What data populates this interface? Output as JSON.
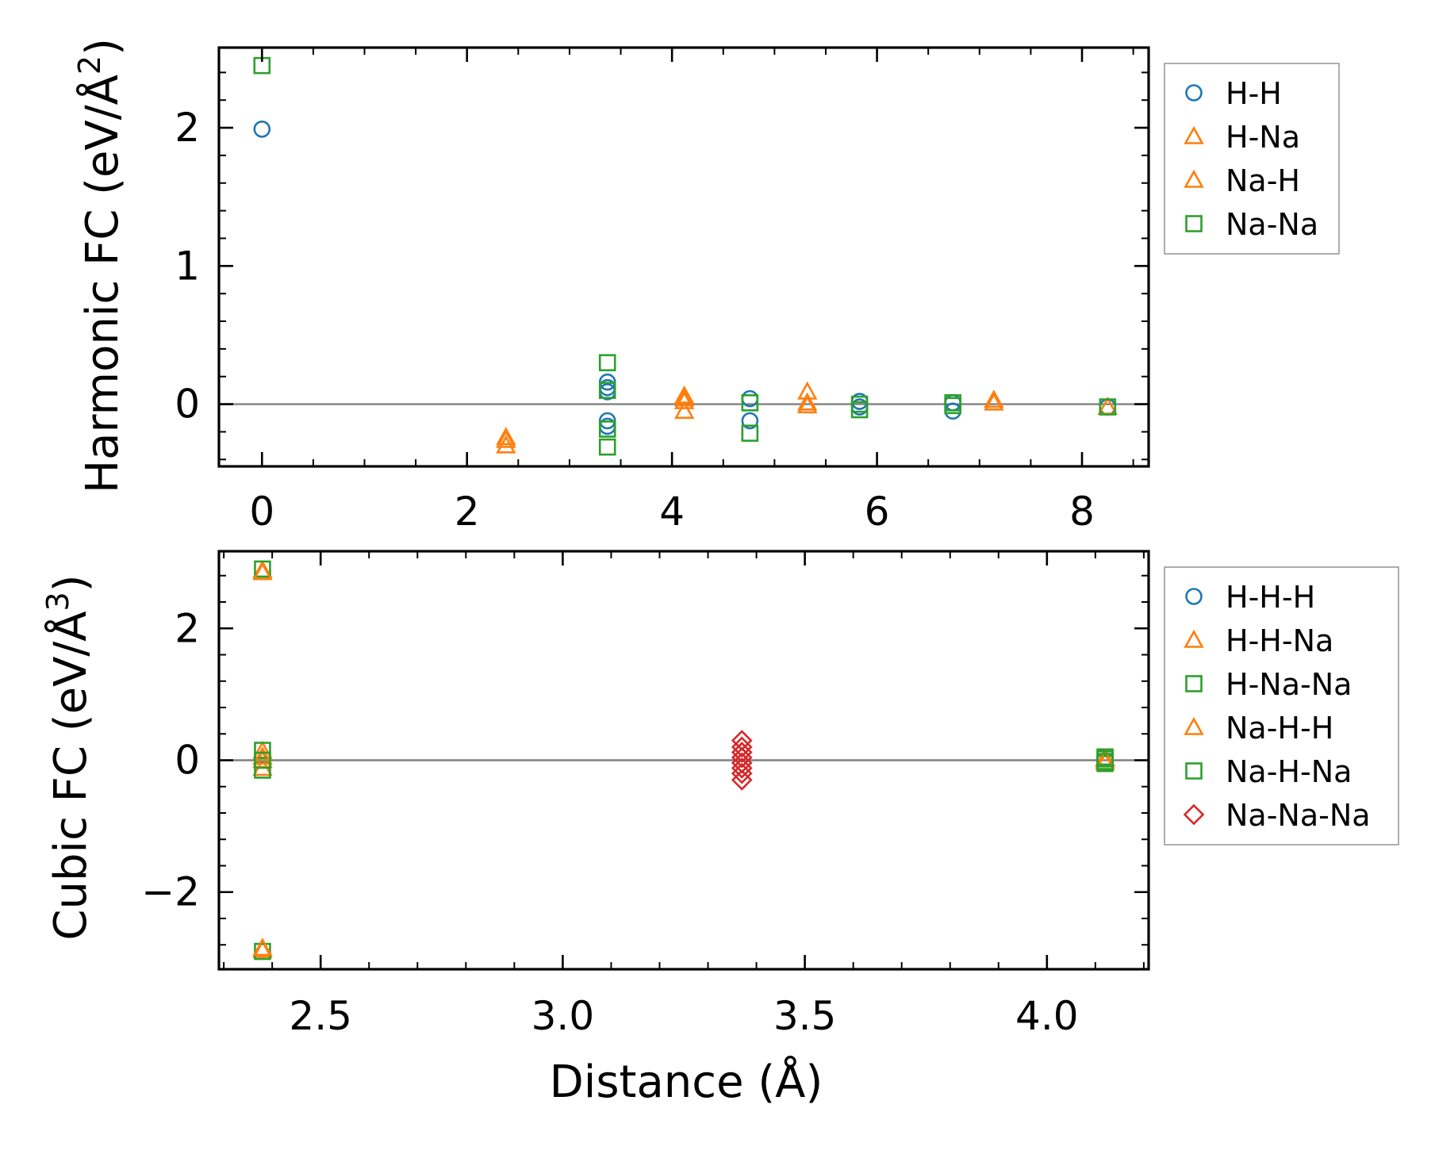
{
  "figure_title": "",
  "shared_xlabel": "Distance (Å)",
  "chart_data": [
    {
      "type": "scatter",
      "title": "",
      "xlabel": "",
      "ylabel": "Harmonic FC (eV/Å²)",
      "ylabel_base": "Harmonic FC (eV/Å",
      "ylabel_sup": "2",
      "ylabel_tail": ")",
      "xlim": [
        -0.42,
        8.65
      ],
      "ylim": [
        -0.45,
        2.58
      ],
      "xticks": [
        0,
        2,
        4,
        6,
        8
      ],
      "xtick_labels": [
        "0",
        "2",
        "4",
        "6",
        "8"
      ],
      "yticks": [
        0,
        1,
        2
      ],
      "ytick_labels": [
        "0",
        "1",
        "2"
      ],
      "hline_at": 0,
      "grid": false,
      "legend_position": "outside-right-top",
      "series": [
        {
          "name": "H-H",
          "marker": "circle",
          "color": "#1f77b4",
          "points": [
            [
              0,
              1.99
            ],
            [
              3.37,
              0.16
            ],
            [
              3.37,
              0.12
            ],
            [
              3.37,
              0.09
            ],
            [
              3.37,
              -0.12
            ],
            [
              3.37,
              -0.16
            ],
            [
              4.76,
              0.04
            ],
            [
              4.76,
              -0.12
            ],
            [
              5.83,
              0.02
            ],
            [
              5.83,
              -0.02
            ],
            [
              6.74,
              0.01
            ],
            [
              6.74,
              -0.05
            ],
            [
              8.25,
              -0.02
            ]
          ]
        },
        {
          "name": "H-Na",
          "marker": "triangle",
          "color": "#ff7f0e",
          "points": [
            [
              2.38,
              -0.24
            ],
            [
              2.38,
              -0.3
            ],
            [
              4.12,
              0.06
            ],
            [
              4.12,
              0.02
            ],
            [
              4.12,
              -0.05
            ],
            [
              5.32,
              0.09
            ],
            [
              5.32,
              0.01
            ],
            [
              7.14,
              0.03
            ],
            [
              8.25,
              -0.02
            ]
          ]
        },
        {
          "name": "Na-H",
          "marker": "triangle",
          "color": "#ff7f0e",
          "points": [
            [
              2.38,
              -0.26
            ],
            [
              4.12,
              0.04
            ],
            [
              5.32,
              -0.01
            ],
            [
              7.14,
              0.01
            ]
          ]
        },
        {
          "name": "Na-Na",
          "marker": "square",
          "color": "#2ca02c",
          "points": [
            [
              0,
              2.45
            ],
            [
              3.37,
              0.3
            ],
            [
              3.37,
              0.1
            ],
            [
              3.37,
              -0.18
            ],
            [
              3.37,
              -0.31
            ],
            [
              4.76,
              0.01
            ],
            [
              4.76,
              -0.21
            ],
            [
              5.83,
              0.0
            ],
            [
              5.83,
              -0.04
            ],
            [
              6.74,
              0.01
            ],
            [
              6.74,
              -0.01
            ],
            [
              8.25,
              -0.02
            ]
          ]
        }
      ],
      "legend": [
        {
          "label": "H-H",
          "marker": "circle",
          "color": "#1f77b4"
        },
        {
          "label": "H-Na",
          "marker": "triangle",
          "color": "#ff7f0e"
        },
        {
          "label": "Na-H",
          "marker": "triangle",
          "color": "#ff7f0e"
        },
        {
          "label": "Na-Na",
          "marker": "square",
          "color": "#2ca02c"
        }
      ]
    },
    {
      "type": "scatter",
      "title": "",
      "xlabel": "Distance (Å)",
      "ylabel": "Cubic FC (eV/Å³)",
      "ylabel_base": "Cubic FC (eV/Å",
      "ylabel_sup": "3",
      "ylabel_tail": ")",
      "xlim": [
        2.29,
        4.21
      ],
      "ylim": [
        -3.17,
        3.17
      ],
      "xticks": [
        2.5,
        3.0,
        3.5,
        4.0
      ],
      "xtick_labels": [
        "2.5",
        "3.0",
        "3.5",
        "4.0"
      ],
      "yticks": [
        -2,
        0,
        2
      ],
      "ytick_labels": [
        "−2",
        "0",
        "2"
      ],
      "hline_at": 0,
      "grid": false,
      "legend_position": "outside-right-top",
      "series": [
        {
          "name": "H-H-H",
          "marker": "circle",
          "color": "#1f77b4",
          "points": []
        },
        {
          "name": "H-H-Na",
          "marker": "triangle",
          "color": "#ff7f0e",
          "points": [
            [
              2.38,
              2.88
            ],
            [
              2.38,
              0.14
            ],
            [
              2.38,
              0.0
            ],
            [
              2.38,
              -0.12
            ],
            [
              2.38,
              -2.88
            ],
            [
              4.12,
              0.03
            ],
            [
              4.12,
              -0.03
            ]
          ]
        },
        {
          "name": "H-Na-Na",
          "marker": "square",
          "color": "#2ca02c",
          "points": [
            [
              2.38,
              2.9
            ],
            [
              2.38,
              0.15
            ],
            [
              2.38,
              -0.15
            ],
            [
              2.38,
              -2.9
            ],
            [
              4.12,
              0.05
            ],
            [
              4.12,
              -0.05
            ]
          ]
        },
        {
          "name": "Na-H-H",
          "marker": "triangle",
          "color": "#ff7f0e",
          "points": [
            [
              2.38,
              2.85
            ],
            [
              2.38,
              0.05
            ],
            [
              2.38,
              -2.85
            ],
            [
              4.12,
              0.01
            ]
          ]
        },
        {
          "name": "Na-H-Na",
          "marker": "square",
          "color": "#2ca02c",
          "points": [
            [
              2.38,
              0.0
            ],
            [
              4.12,
              0.02
            ],
            [
              4.12,
              -0.02
            ]
          ]
        },
        {
          "name": "Na-Na-Na",
          "marker": "diamond",
          "color": "#d62728",
          "points": [
            [
              3.37,
              0.3
            ],
            [
              3.37,
              0.2
            ],
            [
              3.37,
              0.12
            ],
            [
              3.37,
              0.04
            ],
            [
              3.37,
              -0.04
            ],
            [
              3.37,
              -0.12
            ],
            [
              3.37,
              -0.2
            ],
            [
              3.37,
              -0.3
            ]
          ]
        }
      ],
      "legend": [
        {
          "label": "H-H-H",
          "marker": "circle",
          "color": "#1f77b4"
        },
        {
          "label": "H-H-Na",
          "marker": "triangle",
          "color": "#ff7f0e"
        },
        {
          "label": "H-Na-Na",
          "marker": "square",
          "color": "#2ca02c"
        },
        {
          "label": "Na-H-H",
          "marker": "triangle",
          "color": "#ff7f0e"
        },
        {
          "label": "Na-H-Na",
          "marker": "square",
          "color": "#2ca02c"
        },
        {
          "label": "Na-Na-Na",
          "marker": "diamond",
          "color": "#d62728"
        }
      ]
    }
  ]
}
